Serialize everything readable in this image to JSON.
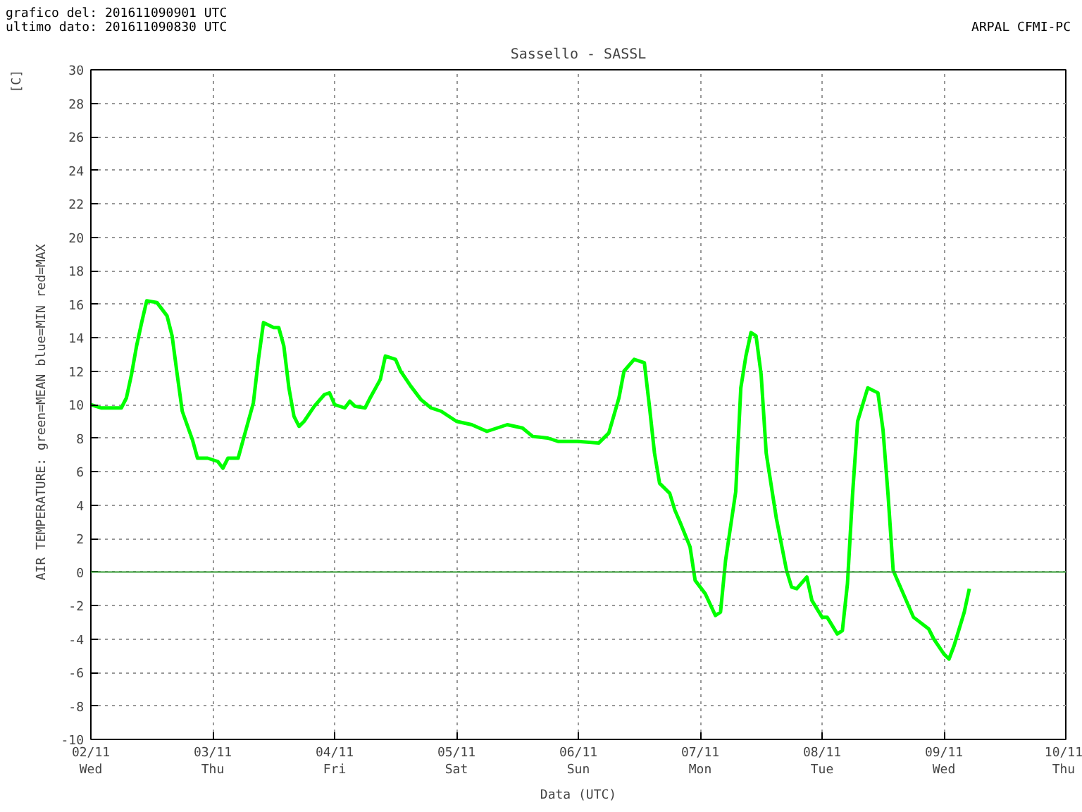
{
  "chart_data": {
    "type": "line",
    "title": "Sassello - SASSL",
    "xlabel": "Data (UTC)",
    "ylabel": "AIR TEMPERATURE: green=MEAN  blue=MIN  red=MAX",
    "annotations": [
      "grafico del: 201611090901 UTC",
      "ultimo dato: 201611090830 UTC",
      "ARPAL CFMI-PC",
      "[C]"
    ],
    "x": [
      "2016-11-02T00:00",
      "2016-11-02T02:00",
      "2016-11-02T06:00",
      "2016-11-02T07:00",
      "2016-11-02T08:00",
      "2016-11-02T09:00",
      "2016-11-02T10:00",
      "2016-11-02T11:00",
      "2016-11-02T13:00",
      "2016-11-02T15:00",
      "2016-11-02T16:00",
      "2016-11-02T17:00",
      "2016-11-02T18:00",
      "2016-11-02T20:00",
      "2016-11-02T21:00",
      "2016-11-02T23:00",
      "2016-11-03T01:00",
      "2016-11-03T02:00",
      "2016-11-03T03:00",
      "2016-11-03T05:00",
      "2016-11-03T06:00",
      "2016-11-03T08:00",
      "2016-11-03T09:00",
      "2016-11-03T10:00",
      "2016-11-03T12:00",
      "2016-11-03T13:00",
      "2016-11-03T14:00",
      "2016-11-03T15:00",
      "2016-11-03T16:00",
      "2016-11-03T17:00",
      "2016-11-03T18:00",
      "2016-11-03T20:00",
      "2016-11-03T22:00",
      "2016-11-03T23:00",
      "2016-11-04T00:00",
      "2016-11-04T02:00",
      "2016-11-04T03:00",
      "2016-11-04T04:00",
      "2016-11-04T06:00",
      "2016-11-04T07:00",
      "2016-11-04T09:00",
      "2016-11-04T10:00",
      "2016-11-04T12:00",
      "2016-11-04T13:00",
      "2016-11-04T15:00",
      "2016-11-04T17:00",
      "2016-11-04T19:00",
      "2016-11-04T21:00",
      "2016-11-04T23:00",
      "2016-11-05T00:00",
      "2016-11-05T03:00",
      "2016-11-05T06:00",
      "2016-11-05T08:00",
      "2016-11-05T10:00",
      "2016-11-05T13:00",
      "2016-11-05T15:00",
      "2016-11-05T18:00",
      "2016-11-05T20:00",
      "2016-11-06T00:00",
      "2016-11-06T04:00",
      "2016-11-06T06:00",
      "2016-11-06T08:00",
      "2016-11-06T09:00",
      "2016-11-06T11:00",
      "2016-11-06T13:00",
      "2016-11-06T14:00",
      "2016-11-06T15:00",
      "2016-11-06T16:00",
      "2016-11-06T18:00",
      "2016-11-06T19:00",
      "2016-11-06T20:00",
      "2016-11-06T22:00",
      "2016-11-06T23:00",
      "2016-11-07T01:00",
      "2016-11-07T03:00",
      "2016-11-07T04:00",
      "2016-11-07T05:00",
      "2016-11-07T07:00",
      "2016-11-07T08:00",
      "2016-11-07T09:00",
      "2016-11-07T10:00",
      "2016-11-07T11:00",
      "2016-11-07T12:00",
      "2016-11-07T13:00",
      "2016-11-07T15:00",
      "2016-11-07T17:00",
      "2016-11-07T18:00",
      "2016-11-07T19:00",
      "2016-11-07T21:00",
      "2016-11-07T22:00",
      "2016-11-08T00:00",
      "2016-11-08T01:00",
      "2016-11-08T03:00",
      "2016-11-08T04:00",
      "2016-11-08T05:00",
      "2016-11-08T06:00",
      "2016-11-08T07:00",
      "2016-11-08T09:00",
      "2016-11-08T11:00",
      "2016-11-08T12:00",
      "2016-11-08T13:00",
      "2016-11-08T14:00",
      "2016-11-08T16:00",
      "2016-11-08T18:00",
      "2016-11-08T21:00",
      "2016-11-08T22:00",
      "2016-11-09T00:00",
      "2016-11-09T01:00",
      "2016-11-09T02:00",
      "2016-11-09T04:00",
      "2016-11-09T05:00"
    ],
    "series": [
      {
        "color": "#00ff00",
        "values": [
          10.0,
          9.8,
          9.8,
          10.4,
          11.8,
          13.5,
          14.9,
          16.2,
          16.1,
          15.3,
          14.1,
          11.8,
          9.6,
          7.9,
          6.8,
          6.8,
          6.6,
          6.2,
          6.8,
          6.8,
          7.9,
          10.1,
          12.7,
          14.9,
          14.6,
          14.6,
          13.5,
          11.0,
          9.3,
          8.7,
          9.0,
          9.9,
          10.6,
          10.7,
          10.0,
          9.8,
          10.2,
          9.9,
          9.8,
          10.4,
          11.5,
          12.9,
          12.7,
          12.0,
          11.1,
          10.3,
          9.8,
          9.6,
          9.2,
          9.0,
          8.8,
          8.4,
          8.6,
          8.8,
          8.6,
          8.1,
          8.0,
          7.8,
          7.8,
          7.7,
          8.3,
          10.4,
          12.0,
          12.7,
          12.5,
          9.9,
          7.1,
          5.3,
          4.7,
          3.7,
          3.0,
          1.5,
          -0.5,
          -1.3,
          -2.6,
          -2.4,
          0.7,
          4.8,
          11.0,
          12.9,
          14.3,
          14.1,
          11.8,
          7.1,
          3.2,
          0.1,
          -0.9,
          -1.0,
          -0.3,
          -1.7,
          -2.7,
          -2.7,
          -3.7,
          -3.5,
          -0.7,
          4.6,
          9.0,
          11.0,
          10.7,
          8.5,
          4.6,
          0.1,
          -1.3,
          -2.7,
          -3.4,
          -4.0,
          -4.9,
          -5.2,
          -4.4,
          -2.4,
          -1.0
        ]
      }
    ],
    "xlim": [
      "2016-11-02",
      "2016-11-10"
    ],
    "xticks": [
      {
        "value": "2016-11-02",
        "label": "02/11\nWed"
      },
      {
        "value": "2016-11-03",
        "label": "03/11\nThu"
      },
      {
        "value": "2016-11-04",
        "label": "04/11\nFri"
      },
      {
        "value": "2016-11-05",
        "label": "05/11\nSat"
      },
      {
        "value": "2016-11-06",
        "label": "06/11\nSun"
      },
      {
        "value": "2016-11-07",
        "label": "07/11\nMon"
      },
      {
        "value": "2016-11-08",
        "label": "08/11\nTue"
      },
      {
        "value": "2016-11-09",
        "label": "09/11\nWed"
      },
      {
        "value": "2016-11-10",
        "label": "10/11\nThu"
      }
    ],
    "ylim": [
      -10,
      30
    ],
    "yticks": [
      -10,
      -8,
      -6,
      -4,
      -2,
      0,
      2,
      4,
      6,
      8,
      10,
      12,
      14,
      16,
      18,
      20,
      22,
      24,
      26,
      28,
      30
    ],
    "ref_lines": [
      {
        "axis": "y",
        "value": 0,
        "color": "#339933"
      }
    ],
    "grid": true,
    "marker": "none",
    "line_style": "solid"
  }
}
